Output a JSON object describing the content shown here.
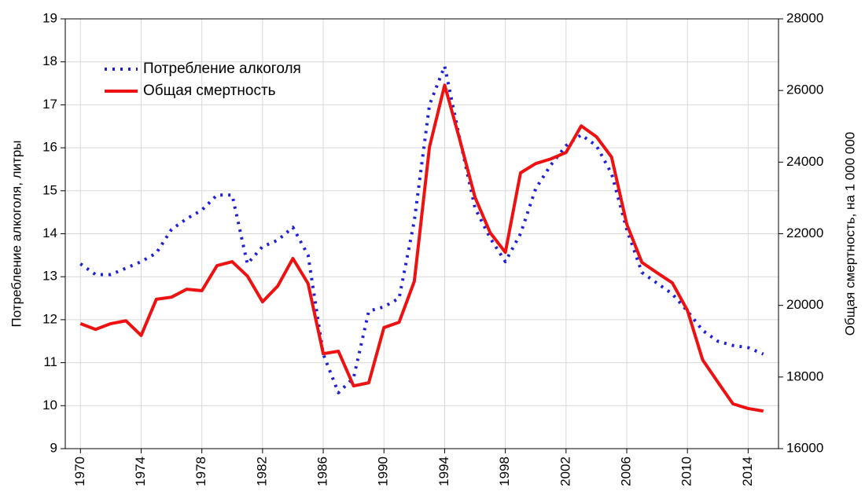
{
  "chart_data": {
    "type": "line",
    "x": [
      1970,
      1971,
      1972,
      1973,
      1974,
      1975,
      1976,
      1977,
      1978,
      1979,
      1980,
      1981,
      1982,
      1983,
      1984,
      1985,
      1986,
      1987,
      1988,
      1989,
      1990,
      1991,
      1992,
      1993,
      1994,
      1995,
      1996,
      1997,
      1998,
      1999,
      2000,
      2001,
      2002,
      2003,
      2004,
      2005,
      2006,
      2007,
      2008,
      2009,
      2010,
      2011,
      2012,
      2013,
      2014,
      2015
    ],
    "ylabel": "Потребление алкоголя, литры",
    "y2label": "Общая смертность, на 1 000 000",
    "series": [
      {
        "name": "Потребление алкоголя",
        "color": "#1f1fd8",
        "style": "dotted",
        "values": [
          13.3,
          13.05,
          13.05,
          13.2,
          13.35,
          13.55,
          14.1,
          14.35,
          14.55,
          14.9,
          14.9,
          13.3,
          13.7,
          13.85,
          14.15,
          13.5,
          11.2,
          10.3,
          10.65,
          12.2,
          12.3,
          12.5,
          14.3,
          17.0,
          17.9,
          16.2,
          14.6,
          13.9,
          13.35,
          14.0,
          15.05,
          15.6,
          16.05,
          16.3,
          16.05,
          15.4,
          14.1,
          13.1,
          12.85,
          12.6,
          12.2,
          11.75,
          11.5,
          11.4,
          11.35,
          11.2
        ]
      },
      {
        "name": "Общая смертность",
        "color": "#ee1111",
        "style": "solid",
        "axis": "y2",
        "values": [
          19490,
          19330,
          19490,
          19570,
          19160,
          20170,
          20230,
          20450,
          20410,
          21110,
          21220,
          20820,
          20100,
          20540,
          21310,
          20610,
          18650,
          18720,
          17750,
          17840,
          19380,
          19530,
          20670,
          24420,
          26150,
          24620,
          23020,
          22030,
          21480,
          23700,
          23960,
          24090,
          24270,
          25010,
          24710,
          24140,
          22270,
          21200,
          20910,
          20630,
          19860,
          18480,
          17860,
          17250,
          17120,
          17050
        ]
      }
    ],
    "xlim": [
      1969,
      2016
    ],
    "xticks": [
      1970,
      1974,
      1978,
      1982,
      1986,
      1990,
      1994,
      1998,
      2002,
      2006,
      2010,
      2014
    ],
    "ylim": [
      9,
      19
    ],
    "yticks": [
      9,
      10,
      11,
      12,
      13,
      14,
      15,
      16,
      17,
      18,
      19
    ],
    "y2lim": [
      16000,
      28000
    ],
    "y2ticks": [
      16000,
      18000,
      20000,
      22000,
      24000,
      26000,
      28000
    ],
    "grid": true,
    "legend": "upper-left"
  }
}
